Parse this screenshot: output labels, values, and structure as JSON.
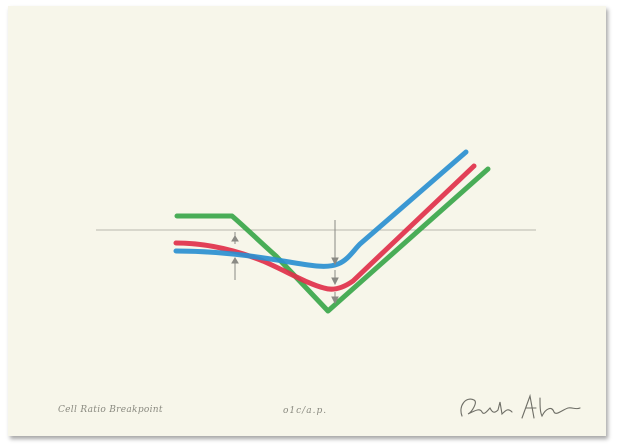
{
  "artwork": {
    "title_caption": "Cell Ratio Breakpoint",
    "edition": "o1c/a.p.",
    "signature": "Gerald Ak"
  },
  "colors": {
    "paper": "#f7f6ea",
    "green": "#3aa64a",
    "red": "#e0304a",
    "blue": "#2a8fd0",
    "baseline": "#b9b8ae",
    "arrow": "#8a8a84",
    "caption_ink": "#8a8a80"
  }
}
